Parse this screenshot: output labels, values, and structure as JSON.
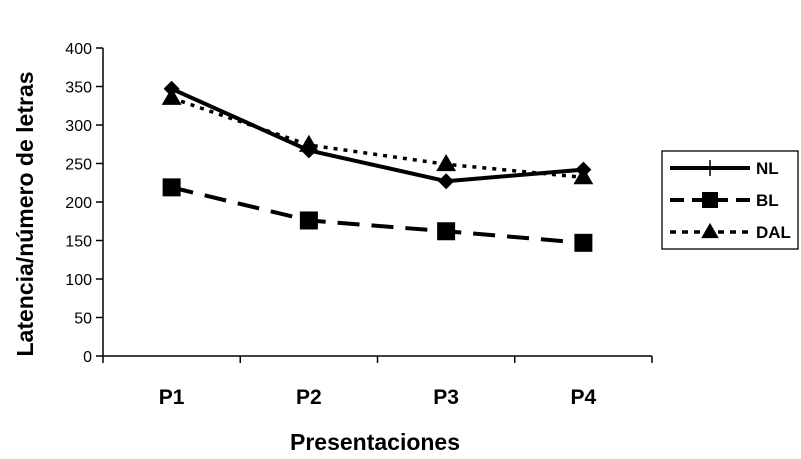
{
  "chart_data": {
    "type": "line",
    "categories": [
      "P1",
      "P2",
      "P3",
      "P4"
    ],
    "xlabel": "Presentaciones",
    "ylabel": "Latencia/número de letras",
    "ylim": [
      0,
      400
    ],
    "yticks": [
      0,
      50,
      100,
      150,
      200,
      250,
      300,
      350,
      400
    ],
    "grid": false,
    "legend_position": "right",
    "series": [
      {
        "name": "NL",
        "values": [
          347,
          267,
          227,
          242
        ],
        "line_style": "solid",
        "marker": "diamond",
        "color": "#000000"
      },
      {
        "name": "BL",
        "values": [
          219,
          176,
          162,
          147
        ],
        "line_style": "dashed",
        "marker": "square",
        "color": "#000000"
      },
      {
        "name": "DAL",
        "values": [
          335,
          274,
          249,
          232
        ],
        "line_style": "dotted",
        "marker": "triangle",
        "color": "#000000"
      }
    ]
  }
}
